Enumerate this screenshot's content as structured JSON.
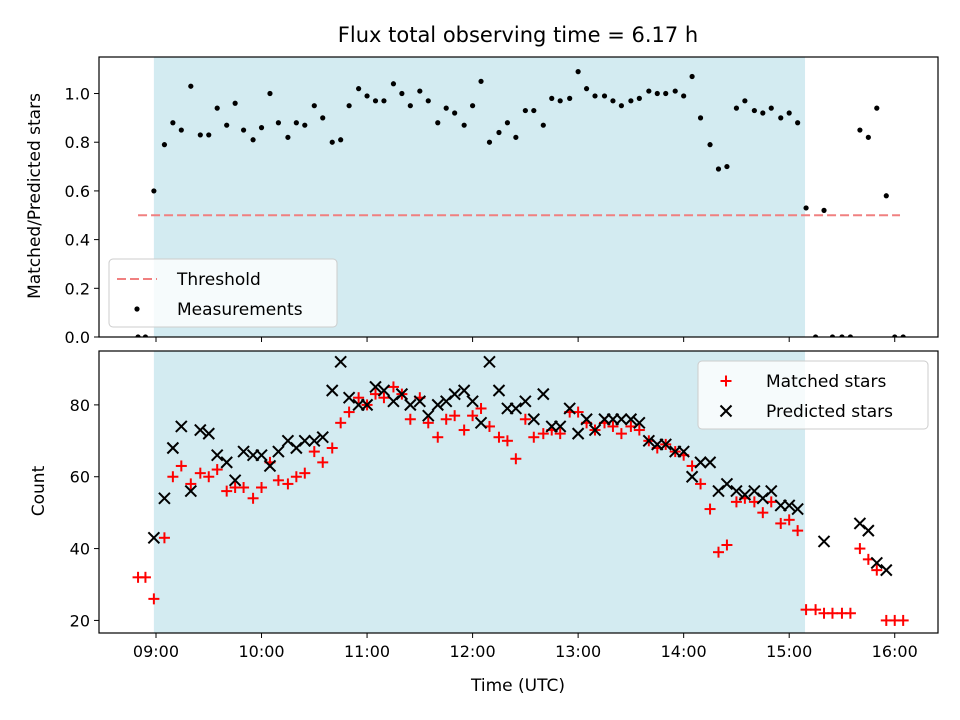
{
  "figure": {
    "title": "Flux total observing time = 6.17 h"
  },
  "chart_data": [
    {
      "type": "scatter",
      "panel": "top",
      "xlabel": "",
      "ylabel": "Matched/Predicted stars",
      "xlim": [
        8.46,
        16.41
      ],
      "ylim": [
        0,
        1.15
      ],
      "yticks": [
        0.0,
        0.2,
        0.4,
        0.6,
        0.8,
        1.0
      ],
      "ytick_labels": [
        "0.0",
        "0.2",
        "0.4",
        "0.6",
        "0.8",
        "1.0"
      ],
      "shaded_span": [
        8.98,
        15.15
      ],
      "shaded_color": "#d3ebf1",
      "threshold": {
        "name": "Threshold",
        "y": 0.5,
        "x": [
          8.83,
          16.05
        ],
        "color": "#f08080",
        "style": "dashed"
      },
      "legend": {
        "placement": "lower-left",
        "entries": [
          "Threshold",
          "Measurements"
        ]
      },
      "series": [
        {
          "name": "Measurements",
          "marker": "dot",
          "color": "#000000",
          "points": [
            [
              8.83,
              0.0
            ],
            [
              8.9,
              0.0
            ],
            [
              8.98,
              0.6
            ],
            [
              9.08,
              0.79
            ],
            [
              9.16,
              0.88
            ],
            [
              9.24,
              0.85
            ],
            [
              9.33,
              1.03
            ],
            [
              9.42,
              0.83
            ],
            [
              9.5,
              0.83
            ],
            [
              9.58,
              0.94
            ],
            [
              9.67,
              0.87
            ],
            [
              9.75,
              0.96
            ],
            [
              9.83,
              0.85
            ],
            [
              9.92,
              0.81
            ],
            [
              10.0,
              0.86
            ],
            [
              10.08,
              1.0
            ],
            [
              10.16,
              0.88
            ],
            [
              10.25,
              0.82
            ],
            [
              10.33,
              0.88
            ],
            [
              10.41,
              0.87
            ],
            [
              10.5,
              0.95
            ],
            [
              10.58,
              0.9
            ],
            [
              10.67,
              0.8
            ],
            [
              10.75,
              0.81
            ],
            [
              10.83,
              0.95
            ],
            [
              10.92,
              1.02
            ],
            [
              11.0,
              0.99
            ],
            [
              11.08,
              0.97
            ],
            [
              11.16,
              0.97
            ],
            [
              11.25,
              1.04
            ],
            [
              11.33,
              1.0
            ],
            [
              11.41,
              0.95
            ],
            [
              11.5,
              1.01
            ],
            [
              11.58,
              0.97
            ],
            [
              11.67,
              0.88
            ],
            [
              11.75,
              0.94
            ],
            [
              11.83,
              0.92
            ],
            [
              11.92,
              0.87
            ],
            [
              12.0,
              0.95
            ],
            [
              12.08,
              1.05
            ],
            [
              12.16,
              0.8
            ],
            [
              12.25,
              0.84
            ],
            [
              12.33,
              0.88
            ],
            [
              12.41,
              0.82
            ],
            [
              12.5,
              0.93
            ],
            [
              12.58,
              0.93
            ],
            [
              12.67,
              0.87
            ],
            [
              12.75,
              0.98
            ],
            [
              12.83,
              0.97
            ],
            [
              12.92,
              0.98
            ],
            [
              13.0,
              1.09
            ],
            [
              13.08,
              1.02
            ],
            [
              13.16,
              0.99
            ],
            [
              13.25,
              0.99
            ],
            [
              13.33,
              0.97
            ],
            [
              13.41,
              0.95
            ],
            [
              13.5,
              0.97
            ],
            [
              13.58,
              0.98
            ],
            [
              13.67,
              1.01
            ],
            [
              13.75,
              1.0
            ],
            [
              13.83,
              1.0
            ],
            [
              13.92,
              1.01
            ],
            [
              14.0,
              0.99
            ],
            [
              14.08,
              1.07
            ],
            [
              14.16,
              0.9
            ],
            [
              14.25,
              0.79
            ],
            [
              14.33,
              0.69
            ],
            [
              14.41,
              0.7
            ],
            [
              14.5,
              0.94
            ],
            [
              14.58,
              0.97
            ],
            [
              14.67,
              0.93
            ],
            [
              14.75,
              0.92
            ],
            [
              14.83,
              0.94
            ],
            [
              14.92,
              0.9
            ],
            [
              15.0,
              0.92
            ],
            [
              15.08,
              0.88
            ],
            [
              15.16,
              0.53
            ],
            [
              15.25,
              0.0
            ],
            [
              15.33,
              0.52
            ],
            [
              15.41,
              0.0
            ],
            [
              15.5,
              0.0
            ],
            [
              15.58,
              0.0
            ],
            [
              15.67,
              0.85
            ],
            [
              15.75,
              0.82
            ],
            [
              15.83,
              0.94
            ],
            [
              15.92,
              0.58
            ],
            [
              16.0,
              0.0
            ],
            [
              16.08,
              0.0
            ]
          ]
        }
      ]
    },
    {
      "type": "scatter",
      "panel": "bottom",
      "xlabel": "Time (UTC)",
      "ylabel": "Count",
      "xlim": [
        8.46,
        16.41
      ],
      "ylim": [
        16.5,
        95
      ],
      "xticks": [
        9,
        10,
        11,
        12,
        13,
        14,
        15,
        16
      ],
      "xtick_labels": [
        "09:00",
        "10:00",
        "11:00",
        "12:00",
        "13:00",
        "14:00",
        "15:00",
        "16:00"
      ],
      "yticks": [
        20,
        40,
        60,
        80
      ],
      "ytick_labels": [
        "20",
        "40",
        "60",
        "80"
      ],
      "shaded_span": [
        8.98,
        15.15
      ],
      "shaded_color": "#d3ebf1",
      "legend": {
        "placement": "top-right",
        "entries": [
          "Matched stars",
          "Predicted stars"
        ]
      },
      "series": [
        {
          "name": "Matched stars",
          "marker": "plus",
          "color": "#ff0000",
          "points": [
            [
              8.83,
              32
            ],
            [
              8.9,
              32
            ],
            [
              8.98,
              26
            ],
            [
              9.08,
              43
            ],
            [
              9.16,
              60
            ],
            [
              9.24,
              63
            ],
            [
              9.33,
              58
            ],
            [
              9.42,
              61
            ],
            [
              9.5,
              60
            ],
            [
              9.58,
              62
            ],
            [
              9.67,
              56
            ],
            [
              9.75,
              57
            ],
            [
              9.83,
              57
            ],
            [
              9.92,
              54
            ],
            [
              10.0,
              57
            ],
            [
              10.08,
              64
            ],
            [
              10.16,
              59
            ],
            [
              10.25,
              58
            ],
            [
              10.33,
              60
            ],
            [
              10.41,
              61
            ],
            [
              10.5,
              67
            ],
            [
              10.58,
              64
            ],
            [
              10.67,
              68
            ],
            [
              10.75,
              75
            ],
            [
              10.83,
              78
            ],
            [
              10.92,
              82
            ],
            [
              11.0,
              80
            ],
            [
              11.08,
              83
            ],
            [
              11.16,
              82
            ],
            [
              11.25,
              85
            ],
            [
              11.33,
              83
            ],
            [
              11.41,
              76
            ],
            [
              11.5,
              82
            ],
            [
              11.58,
              75
            ],
            [
              11.67,
              71
            ],
            [
              11.75,
              76
            ],
            [
              11.83,
              77
            ],
            [
              11.92,
              73
            ],
            [
              12.0,
              77
            ],
            [
              12.08,
              79
            ],
            [
              12.16,
              74
            ],
            [
              12.25,
              71
            ],
            [
              12.33,
              70
            ],
            [
              12.41,
              65
            ],
            [
              12.5,
              76
            ],
            [
              12.58,
              71
            ],
            [
              12.67,
              72
            ],
            [
              12.75,
              73
            ],
            [
              12.83,
              72
            ],
            [
              12.92,
              78
            ],
            [
              13.0,
              78
            ],
            [
              13.08,
              75
            ],
            [
              13.16,
              73
            ],
            [
              13.25,
              75
            ],
            [
              13.33,
              74
            ],
            [
              13.41,
              72
            ],
            [
              13.5,
              74
            ],
            [
              13.58,
              73
            ],
            [
              13.67,
              70
            ],
            [
              13.75,
              68
            ],
            [
              13.83,
              69
            ],
            [
              13.92,
              67
            ],
            [
              14.0,
              66
            ],
            [
              14.08,
              63
            ],
            [
              14.16,
              58
            ],
            [
              14.25,
              51
            ],
            [
              14.33,
              39
            ],
            [
              14.41,
              41
            ],
            [
              14.5,
              53
            ],
            [
              14.58,
              54
            ],
            [
              14.67,
              53
            ],
            [
              14.75,
              50
            ],
            [
              14.83,
              53
            ],
            [
              14.92,
              47
            ],
            [
              15.0,
              48
            ],
            [
              15.08,
              45
            ],
            [
              15.16,
              23
            ],
            [
              15.25,
              23
            ],
            [
              15.33,
              22
            ],
            [
              15.41,
              22
            ],
            [
              15.5,
              22
            ],
            [
              15.58,
              22
            ],
            [
              15.67,
              40
            ],
            [
              15.75,
              37
            ],
            [
              15.83,
              34
            ],
            [
              15.92,
              20
            ],
            [
              16.0,
              20
            ],
            [
              16.08,
              20
            ]
          ]
        },
        {
          "name": "Predicted stars",
          "marker": "x",
          "color": "#000000",
          "points": [
            [
              8.98,
              43
            ],
            [
              9.08,
              54
            ],
            [
              9.16,
              68
            ],
            [
              9.24,
              74
            ],
            [
              9.33,
              56
            ],
            [
              9.42,
              73
            ],
            [
              9.5,
              72
            ],
            [
              9.58,
              66
            ],
            [
              9.67,
              64
            ],
            [
              9.75,
              59
            ],
            [
              9.83,
              67
            ],
            [
              9.92,
              66
            ],
            [
              10.0,
              66
            ],
            [
              10.08,
              63
            ],
            [
              10.16,
              67
            ],
            [
              10.25,
              70
            ],
            [
              10.33,
              68
            ],
            [
              10.41,
              70
            ],
            [
              10.5,
              70
            ],
            [
              10.58,
              71
            ],
            [
              10.67,
              84
            ],
            [
              10.75,
              92
            ],
            [
              10.83,
              82
            ],
            [
              10.92,
              80
            ],
            [
              11.0,
              80
            ],
            [
              11.08,
              85
            ],
            [
              11.16,
              84
            ],
            [
              11.25,
              81
            ],
            [
              11.33,
              83
            ],
            [
              11.41,
              80
            ],
            [
              11.5,
              81
            ],
            [
              11.58,
              77
            ],
            [
              11.67,
              80
            ],
            [
              11.75,
              81
            ],
            [
              11.83,
              83
            ],
            [
              11.92,
              84
            ],
            [
              12.0,
              81
            ],
            [
              12.08,
              75
            ],
            [
              12.16,
              92
            ],
            [
              12.25,
              84
            ],
            [
              12.33,
              79
            ],
            [
              12.41,
              79
            ],
            [
              12.5,
              81
            ],
            [
              12.58,
              76
            ],
            [
              12.67,
              83
            ],
            [
              12.75,
              74
            ],
            [
              12.83,
              74
            ],
            [
              12.92,
              79
            ],
            [
              13.0,
              72
            ],
            [
              13.08,
              76
            ],
            [
              13.16,
              73
            ],
            [
              13.25,
              76
            ],
            [
              13.33,
              76
            ],
            [
              13.41,
              76
            ],
            [
              13.5,
              76
            ],
            [
              13.58,
              75
            ],
            [
              13.67,
              70
            ],
            [
              13.75,
              69
            ],
            [
              13.83,
              69
            ],
            [
              13.92,
              67
            ],
            [
              14.0,
              67
            ],
            [
              14.08,
              60
            ],
            [
              14.16,
              64
            ],
            [
              14.25,
              64
            ],
            [
              14.33,
              56
            ],
            [
              14.41,
              58
            ],
            [
              14.5,
              56
            ],
            [
              14.58,
              55
            ],
            [
              14.67,
              56
            ],
            [
              14.75,
              54
            ],
            [
              14.83,
              56
            ],
            [
              14.92,
              52
            ],
            [
              15.0,
              52
            ],
            [
              15.08,
              51
            ],
            [
              15.33,
              42
            ],
            [
              15.67,
              47
            ],
            [
              15.75,
              45
            ],
            [
              15.83,
              36
            ],
            [
              15.92,
              34
            ]
          ]
        }
      ]
    }
  ]
}
